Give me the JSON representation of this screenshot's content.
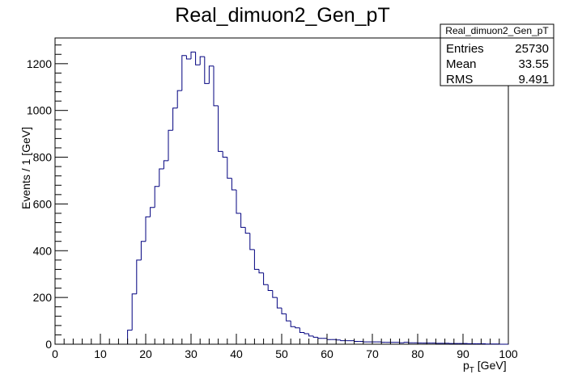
{
  "chart_data": {
    "type": "histogram",
    "title": "Real_dimuon2_Gen_pT",
    "xlabel_main": "p",
    "xlabel_sub": "T",
    "xlabel_unit": " [GeV]",
    "ylabel": "Events / 1 [GeV]",
    "xlim": [
      0,
      100
    ],
    "ylim": [
      0,
      1310
    ],
    "xticks": [
      0,
      10,
      20,
      30,
      40,
      50,
      60,
      70,
      80,
      90,
      100
    ],
    "yticks": [
      0,
      200,
      400,
      600,
      800,
      1000,
      1200
    ],
    "xtick_labels": [
      "0",
      "10",
      "20",
      "30",
      "40",
      "50",
      "60",
      "70",
      "80",
      "90",
      "100"
    ],
    "ytick_labels": [
      "0",
      "200",
      "400",
      "600",
      "800",
      "1000",
      "1200"
    ],
    "bin_width": 1,
    "bin_start": 16,
    "values": [
      60,
      215,
      360,
      440,
      545,
      585,
      675,
      750,
      785,
      915,
      1010,
      1085,
      1235,
      1220,
      1250,
      1195,
      1230,
      1115,
      1190,
      1020,
      825,
      800,
      710,
      660,
      560,
      500,
      475,
      405,
      320,
      305,
      255,
      230,
      200,
      155,
      130,
      100,
      75,
      70,
      50,
      45,
      35,
      30,
      25,
      25,
      20,
      20,
      18,
      15,
      15,
      15,
      12,
      12,
      10,
      10,
      10,
      10,
      8,
      8,
      8,
      8,
      6,
      8,
      6,
      6,
      5,
      5,
      5,
      5,
      4,
      4,
      4,
      3,
      3,
      3,
      3,
      2,
      2,
      2,
      2,
      1,
      1,
      1,
      0,
      0
    ],
    "line_color": "#00007f",
    "grid": false,
    "stats_box": {
      "title": "Real_dimuon2_Gen_pT",
      "entries_label": "Entries",
      "entries_value": "25730",
      "mean_label": "Mean",
      "mean_value": "33.55",
      "rms_label": "RMS",
      "rms_value": "9.491",
      "placement": "top-right"
    }
  }
}
